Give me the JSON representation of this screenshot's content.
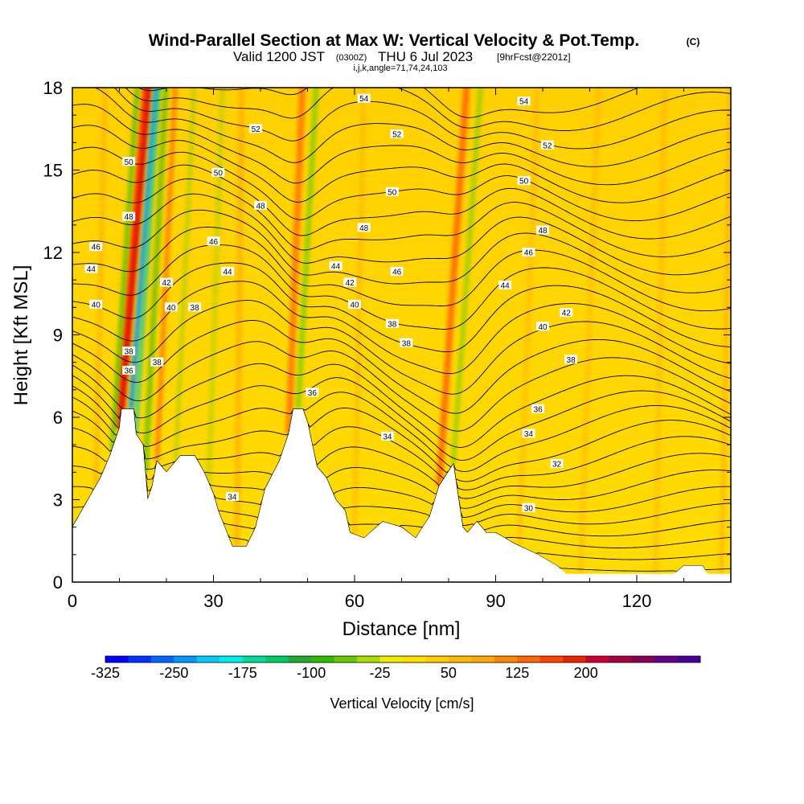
{
  "header": {
    "title": "Wind-Parallel Section at Max W: Vertical Velocity & Pot.Temp.",
    "copyright": "(C)",
    "valid_prefix": "Valid 1200 JST",
    "valid_utc": "(0300Z)",
    "valid_date": "THU 6 Jul 2023",
    "forecast": "[9hrFcst@2201z]",
    "indices": "i,j,k,angle=71,74,24,103"
  },
  "colors": {
    "terrain": "#ffffff",
    "contour": "#000000",
    "background_fill": "#ffd700"
  },
  "chart_data": {
    "type": "heatmap",
    "xlabel": "Distance [nm]",
    "ylabel": "Height [Kft MSL]",
    "xlim": [
      0,
      140
    ],
    "ylim": [
      0,
      18
    ],
    "x_ticks": [
      0,
      30,
      60,
      90,
      120
    ],
    "x_tick_labels": [
      "0",
      "30",
      "60",
      "90",
      "120"
    ],
    "y_ticks": [
      0,
      3,
      6,
      9,
      12,
      15,
      18
    ],
    "y_tick_labels": [
      "0",
      "3",
      "6",
      "9",
      "12",
      "15",
      "18"
    ],
    "terrain_kft": [
      [
        0,
        2.0
      ],
      [
        2,
        2.6
      ],
      [
        4,
        3.2
      ],
      [
        6,
        3.8
      ],
      [
        8,
        4.6
      ],
      [
        10,
        5.6
      ],
      [
        10.5,
        6.3
      ],
      [
        13,
        6.3
      ],
      [
        13.5,
        5.4
      ],
      [
        15,
        5.0
      ],
      [
        16,
        3.0
      ],
      [
        17,
        3.5
      ],
      [
        18,
        4.4
      ],
      [
        20,
        4.0
      ],
      [
        21,
        4.2
      ],
      [
        23,
        4.6
      ],
      [
        26,
        4.6
      ],
      [
        28,
        4.0
      ],
      [
        30,
        3.2
      ],
      [
        31,
        2.6
      ],
      [
        34,
        1.3
      ],
      [
        37,
        1.3
      ],
      [
        39,
        2.0
      ],
      [
        41,
        3.4
      ],
      [
        44,
        4.4
      ],
      [
        46,
        5.4
      ],
      [
        47,
        6.3
      ],
      [
        49,
        6.3
      ],
      [
        50,
        5.8
      ],
      [
        52,
        4.2
      ],
      [
        54,
        3.8
      ],
      [
        56,
        3.0
      ],
      [
        58,
        2.6
      ],
      [
        59,
        1.8
      ],
      [
        62,
        1.6
      ],
      [
        66,
        2.2
      ],
      [
        70,
        2.0
      ],
      [
        73,
        1.6
      ],
      [
        76,
        2.4
      ],
      [
        78,
        3.5
      ],
      [
        81,
        4.3
      ],
      [
        83,
        2.0
      ],
      [
        84,
        1.8
      ],
      [
        86,
        2.2
      ],
      [
        88,
        1.8
      ],
      [
        90,
        1.8
      ],
      [
        94,
        1.4
      ],
      [
        99,
        1.0
      ],
      [
        103,
        0.6
      ],
      [
        105,
        0.3
      ],
      [
        110,
        0.3
      ],
      [
        118,
        0.3
      ],
      [
        128,
        0.3
      ],
      [
        130,
        0.6
      ],
      [
        134,
        0.6
      ],
      [
        135,
        0.3
      ],
      [
        140,
        0.3
      ]
    ],
    "theta_contours": [
      {
        "value": 30,
        "label_at": [
          97,
          2.7
        ]
      },
      {
        "value": 32,
        "label_at": [
          103,
          4.3
        ]
      },
      {
        "value": 34,
        "label_at": [
          67,
          5.3
        ]
      },
      {
        "value": 34,
        "label_at": [
          34,
          3.1
        ]
      },
      {
        "value": 34,
        "label_at": [
          97,
          5.4
        ]
      },
      {
        "value": 36,
        "label_at": [
          51,
          6.9
        ]
      },
      {
        "value": 36,
        "label_at": [
          12,
          7.7
        ]
      },
      {
        "value": 36,
        "label_at": [
          99,
          6.3
        ]
      },
      {
        "value": 38,
        "label_at": [
          12,
          8.4
        ]
      },
      {
        "value": 38,
        "label_at": [
          18,
          8.0
        ]
      },
      {
        "value": 38,
        "label_at": [
          26,
          10.0
        ]
      },
      {
        "value": 38,
        "label_at": [
          68,
          9.4
        ]
      },
      {
        "value": 38,
        "label_at": [
          71,
          8.7
        ]
      },
      {
        "value": 38,
        "label_at": [
          106,
          8.1
        ]
      },
      {
        "value": 40,
        "label_at": [
          5,
          10.1
        ]
      },
      {
        "value": 40,
        "label_at": [
          21,
          10.0
        ]
      },
      {
        "value": 40,
        "label_at": [
          60,
          10.1
        ]
      },
      {
        "value": 40,
        "label_at": [
          100,
          9.3
        ]
      },
      {
        "value": 42,
        "label_at": [
          20,
          10.9
        ]
      },
      {
        "value": 42,
        "label_at": [
          59,
          10.9
        ]
      },
      {
        "value": 42,
        "label_at": [
          105,
          9.8
        ]
      },
      {
        "value": 44,
        "label_at": [
          4,
          11.4
        ]
      },
      {
        "value": 44,
        "label_at": [
          33,
          11.3
        ]
      },
      {
        "value": 44,
        "label_at": [
          56,
          11.5
        ]
      },
      {
        "value": 44,
        "label_at": [
          92,
          10.8
        ]
      },
      {
        "value": 46,
        "label_at": [
          5,
          12.2
        ]
      },
      {
        "value": 46,
        "label_at": [
          30,
          12.4
        ]
      },
      {
        "value": 46,
        "label_at": [
          69,
          11.3
        ]
      },
      {
        "value": 46,
        "label_at": [
          97,
          12.0
        ]
      },
      {
        "value": 48,
        "label_at": [
          12,
          13.3
        ]
      },
      {
        "value": 48,
        "label_at": [
          40,
          13.7
        ]
      },
      {
        "value": 48,
        "label_at": [
          62,
          12.9
        ]
      },
      {
        "value": 48,
        "label_at": [
          100,
          12.8
        ]
      },
      {
        "value": 50,
        "label_at": [
          12,
          15.3
        ]
      },
      {
        "value": 50,
        "label_at": [
          31,
          14.9
        ]
      },
      {
        "value": 50,
        "label_at": [
          68,
          14.2
        ]
      },
      {
        "value": 50,
        "label_at": [
          96,
          14.6
        ]
      },
      {
        "value": 52,
        "label_at": [
          39,
          16.5
        ]
      },
      {
        "value": 52,
        "label_at": [
          69,
          16.3
        ]
      },
      {
        "value": 52,
        "label_at": [
          101,
          15.9
        ]
      },
      {
        "value": 54,
        "label_at": [
          62,
          17.6
        ]
      },
      {
        "value": 54,
        "label_at": [
          96,
          17.5
        ]
      }
    ],
    "color_scale": {
      "label": "Vertical Velocity [cm/s]",
      "tick_labels": [
        "-325",
        "-250",
        "-175",
        "-100",
        "-25",
        "50",
        "125",
        "200"
      ],
      "colors": [
        "#0000ff",
        "#0033ff",
        "#0066ff",
        "#0099ff",
        "#00ccff",
        "#00eeee",
        "#00dd99",
        "#00cc66",
        "#22aa33",
        "#33bb00",
        "#66cc00",
        "#aadd00",
        "#eeee00",
        "#ffdd00",
        "#ffcc00",
        "#ffbb00",
        "#ffaa00",
        "#ff8800",
        "#ff6600",
        "#ff4400",
        "#ee2200",
        "#cc0033",
        "#aa0044",
        "#880055",
        "#660088",
        "#440099"
      ]
    }
  }
}
